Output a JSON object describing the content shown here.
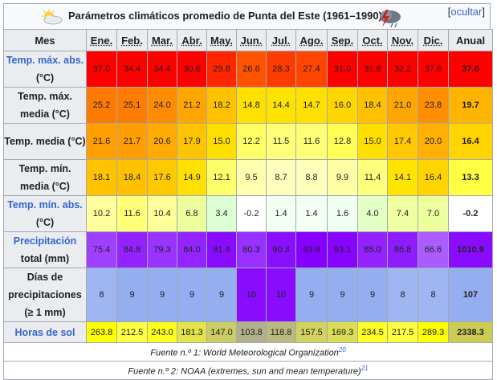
{
  "title": "Parámetros climáticos promedio de Punta del Este (1961–1990)",
  "hide_link": "ocultar",
  "header": {
    "first": "Mes",
    "months": [
      "Ene.",
      "Feb.",
      "Mar.",
      "Abr.",
      "May.",
      "Jun.",
      "Jul.",
      "Ago.",
      "Sep.",
      "Oct.",
      "Nov.",
      "Dic."
    ],
    "annual": "Anual"
  },
  "rows": [
    {
      "label_link": "Temp. máx. abs.",
      "label_rest": "(°C)",
      "values": [
        "37.0",
        "34.4",
        "34.4",
        "30.6",
        "29.8",
        "26.6",
        "28.3",
        "27.4",
        "31.0",
        "31.8",
        "32.2",
        "37.6"
      ],
      "annual": "37.6",
      "colors": [
        "#ff0000",
        "#ff0000",
        "#ff0000",
        "#ff0000",
        "#ff2600",
        "#ff5300",
        "#ff3c00",
        "#ff4500",
        "#ff0000",
        "#ff0000",
        "#ff0000",
        "#ff0000"
      ],
      "annual_color": "#ff0000"
    },
    {
      "label_link": "",
      "label_rest": "Temp. máx. media (°C)",
      "values": [
        "25.2",
        "25.1",
        "24.0",
        "21.2",
        "18.2",
        "14.8",
        "14.4",
        "14.7",
        "16.0",
        "18.4",
        "21.0",
        "23.8"
      ],
      "annual": "19.7",
      "colors": [
        "#ff7a00",
        "#ff7c00",
        "#ff8c00",
        "#ffa500",
        "#ffc200",
        "#ffe000",
        "#ffe300",
        "#ffe000",
        "#ffd600",
        "#ffc100",
        "#ffa700",
        "#ff8e00"
      ],
      "annual_color": "#ffb500"
    },
    {
      "label_link": "",
      "label_rest": "Temp. media (°C)",
      "values": [
        "21.6",
        "21.7",
        "20.6",
        "17.9",
        "15.0",
        "12.2",
        "11.5",
        "11.6",
        "12.8",
        "15.0",
        "17.4",
        "20.0"
      ],
      "annual": "16.4",
      "colors": [
        "#ff9f00",
        "#ff9e00",
        "#ffab00",
        "#ffc400",
        "#ffdf00",
        "#ffff66",
        "#ffff7a",
        "#ffff77",
        "#ffff55",
        "#ffdf00",
        "#ffc800",
        "#ffb000"
      ],
      "annual_color": "#ffd400"
    },
    {
      "label_link": "",
      "label_rest": "Temp. mín. media (°C)",
      "values": [
        "18.1",
        "18.4",
        "17.6",
        "14.9",
        "12.1",
        "9.5",
        "8.7",
        "8.8",
        "9.9",
        "11.4",
        "14.1",
        "16.4"
      ],
      "annual": "13.3",
      "colors": [
        "#ffc300",
        "#ffc000",
        "#ffc900",
        "#ffe000",
        "#ffff6b",
        "#ffffad",
        "#ffffbd",
        "#ffffbc",
        "#ffffa6",
        "#ffff7e",
        "#ffe500",
        "#ffd400"
      ],
      "annual_color": "#ffff44"
    },
    {
      "label_link": "Temp. mín. abs.",
      "label_rest": "(°C)",
      "values": [
        "10.2",
        "11.6",
        "10.4",
        "6.8",
        "3.4",
        "-0.2",
        "1.4",
        "1.4",
        "1.6",
        "4.0",
        "7.4",
        "7.0"
      ],
      "annual": "-0.2",
      "colors": [
        "#ffff9c",
        "#ffff78",
        "#ffff99",
        "#ecff9c",
        "#ddffd4",
        "#ffffff",
        "#f3fff3",
        "#f3fff3",
        "#f1fff1",
        "#e3ffc6",
        "#efffa1",
        "#eeff9e"
      ],
      "annual_color": "#ffffff"
    },
    {
      "label_link": "Precipitación",
      "label_rest": "total (mm)",
      "values": [
        "75.4",
        "84.8",
        "79.3",
        "84.0",
        "91.4",
        "80.3",
        "90.3",
        "93.9",
        "93.1",
        "85.0",
        "86.8",
        "66.6"
      ],
      "annual": "1010.9",
      "colors": [
        "#a040ff",
        "#9322ff",
        "#9a33ff",
        "#9424ff",
        "#8a0cff",
        "#9830ff",
        "#8b0fff",
        "#8600ff",
        "#8704ff",
        "#9322ff",
        "#8f1cff",
        "#ac5bff"
      ],
      "annual_color": "#8a0cff"
    },
    {
      "label_link": "",
      "label_rest": "Días de precipitaciones (≥ 1 mm)",
      "values": [
        "8",
        "9",
        "9",
        "9",
        "9",
        "10",
        "10",
        "9",
        "9",
        "9",
        "8",
        "8"
      ],
      "annual": "107",
      "colors": [
        "#9fb6f2",
        "#95aeef",
        "#95aeef",
        "#95aeef",
        "#95aeef",
        "#8a0cff",
        "#8a0cff",
        "#95aeef",
        "#95aeef",
        "#95aeef",
        "#9fb6f2",
        "#9fb6f2"
      ],
      "annual_color": "#95aeef"
    },
    {
      "label_link": "Horas de sol",
      "label_rest": "",
      "values": [
        "263.8",
        "212.5",
        "243.0",
        "181.3",
        "147.0",
        "103.8",
        "118.8",
        "157.5",
        "169.3",
        "234.5",
        "217.5",
        "289.3"
      ],
      "annual": "2338.3",
      "colors": [
        "#ffff00",
        "#ffff44",
        "#ffff1b",
        "#e4e44a",
        "#cccc66",
        "#b0b08a",
        "#baba80",
        "#d2d260",
        "#dcdc56",
        "#ffff24",
        "#ffff3f",
        "#ffff00"
      ],
      "annual_color": "#cccc55"
    }
  ],
  "sources": [
    {
      "text": "Fuente n.º 1: World Meteorological Organization",
      "ref": "20"
    },
    {
      "text": "Fuente n.º 2: NOAA (extremes, sun and mean temperature)",
      "ref": "21"
    }
  ]
}
